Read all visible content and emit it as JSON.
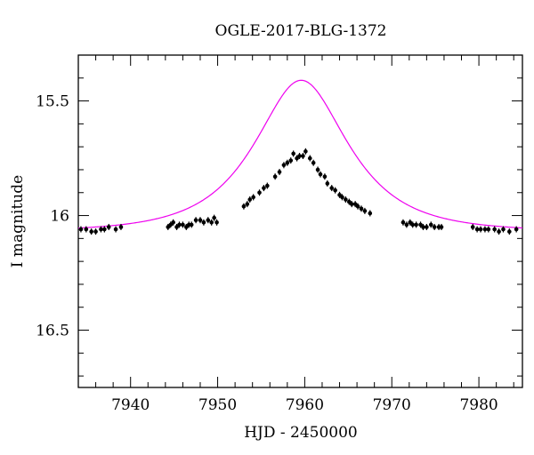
{
  "chart_data": {
    "type": "scatter",
    "title": "OGLE-2017-BLG-1372",
    "xlabel": "HJD - 2450000",
    "ylabel": "I magnitude",
    "xlim": [
      7934,
      7985
    ],
    "ylim": [
      16.75,
      15.3
    ],
    "y_inverted": true,
    "x_ticks": [
      7940,
      7950,
      7960,
      7970,
      7980
    ],
    "x_tick_labels": [
      "7940",
      "7950",
      "7960",
      "7970",
      "7980"
    ],
    "y_ticks": [
      15.5,
      16,
      16.5
    ],
    "y_tick_labels": [
      "15.5",
      "16",
      "16.5"
    ],
    "grid": false,
    "series": [
      {
        "kind": "points",
        "color": "#000000",
        "x": [
          7934.3,
          7934.9,
          7935.5,
          7936.0,
          7936.6,
          7937.0,
          7937.5,
          7938.3,
          7938.9,
          7944.3,
          7944.6,
          7944.9,
          7945.3,
          7945.6,
          7946.0,
          7946.4,
          7946.7,
          7947.0,
          7947.5,
          7948.0,
          7948.4,
          7948.9,
          7949.3,
          7949.6,
          7949.9,
          7953.0,
          7953.4,
          7953.7,
          7954.1,
          7954.8,
          7955.3,
          7955.7,
          7956.6,
          7957.1,
          7957.6,
          7958.0,
          7958.4,
          7958.7,
          7959.1,
          7959.4,
          7959.8,
          7960.1,
          7960.6,
          7961.0,
          7961.5,
          7961.8,
          7962.3,
          7962.6,
          7963.1,
          7963.5,
          7964.0,
          7964.3,
          7964.7,
          7965.1,
          7965.4,
          7965.8,
          7966.1,
          7966.5,
          7966.9,
          7967.5,
          7971.3,
          7971.7,
          7972.1,
          7972.4,
          7972.8,
          7973.3,
          7973.6,
          7974.0,
          7974.5,
          7974.9,
          7975.4,
          7975.7,
          7979.3,
          7979.8,
          7980.2,
          7980.7,
          7981.1,
          7981.8,
          7982.3,
          7982.8,
          7983.5,
          7984.3
        ],
        "y": [
          16.06,
          16.06,
          16.07,
          16.07,
          16.06,
          16.06,
          16.05,
          16.06,
          16.05,
          16.05,
          16.04,
          16.03,
          16.05,
          16.04,
          16.04,
          16.05,
          16.04,
          16.04,
          16.02,
          16.02,
          16.03,
          16.02,
          16.03,
          16.01,
          16.03,
          15.96,
          15.95,
          15.93,
          15.92,
          15.9,
          15.88,
          15.87,
          15.83,
          15.81,
          15.78,
          15.77,
          15.76,
          15.73,
          15.75,
          15.74,
          15.74,
          15.72,
          15.75,
          15.77,
          15.8,
          15.82,
          15.83,
          15.86,
          15.88,
          15.89,
          15.91,
          15.92,
          15.93,
          15.94,
          15.95,
          15.95,
          15.96,
          15.97,
          15.98,
          15.99,
          16.03,
          16.04,
          16.03,
          16.04,
          16.04,
          16.04,
          16.05,
          16.05,
          16.04,
          16.05,
          16.05,
          16.05,
          16.05,
          16.06,
          16.06,
          16.06,
          16.06,
          16.06,
          16.07,
          16.06,
          16.07,
          16.06
        ]
      },
      {
        "kind": "model-curve",
        "color": "#ee00ee",
        "t0": 7959.6,
        "u0": 0.62,
        "tE": 8.3,
        "baseline": 16.07
      }
    ]
  }
}
